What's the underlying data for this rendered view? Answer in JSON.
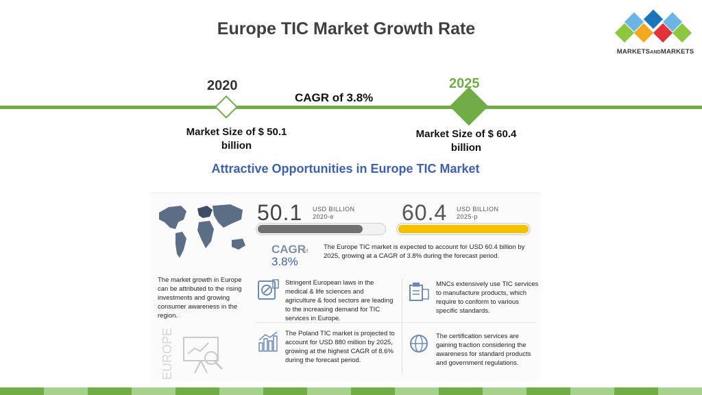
{
  "slide": {
    "title": "Europe TIC Market Growth Rate"
  },
  "logo": {
    "text_main": "MARKETS",
    "text_and": "AND",
    "text_end": "MARKETS",
    "colors": [
      "#1b75bb",
      "#e2323a",
      "#8dc63f",
      "#6cb4e4",
      "#f4a81d"
    ]
  },
  "timeline": {
    "year_start": "2020",
    "year_end": "2025",
    "cagr": "CAGR of 3.8%",
    "market_start": "Market Size of $ 50.1 billion",
    "market_end": "Market Size of $ 60.4 billion",
    "accent_color": "#70ad47"
  },
  "infographic": {
    "title": "Attractive Opportunities in Europe TIC Market",
    "value_2020": "50.1",
    "unit_2020_line1": "USD BILLION",
    "unit_2020_line2": "2020-e",
    "value_2025": "60.4",
    "unit_2025_line1": "USD BILLION",
    "unit_2025_line2": "2025-p",
    "cagr_label": "CAGR",
    "cagr_of": "of",
    "cagr_value": "3.8%",
    "cagr_text": "The Europe TIC market is expected to account for USD 60.4 billion by 2025, growing at a CAGR of 3.8% during the forecast period.",
    "growth_text": "The market growth in Europe can be attributed to the rising investments and growing consumer awareness in the region.",
    "region_label": "EUROPE",
    "opportunities": [
      {
        "icon": "medical-icon",
        "text": "Stringent European laws in the medical & life sciences and agriculture & food sectors are leading to the increasing demand for TIC services in Europe."
      },
      {
        "icon": "manufacturing-icon",
        "text": "MNCs extensively use TIC services to manufacture products, which require to conform to various specific standards."
      },
      {
        "icon": "bar-chart-icon",
        "text": "The Poland TIC market is projected to account for USD 880 million by 2025, growing at the highest CAGR of 8.6% during the forecast period."
      },
      {
        "icon": "globe-icon",
        "text": "The certification services are gaining traction considering the awareness for standard products and government regulations."
      }
    ],
    "bar_fill_2020": 0.83,
    "bar_fill_2025": 1.0
  }
}
